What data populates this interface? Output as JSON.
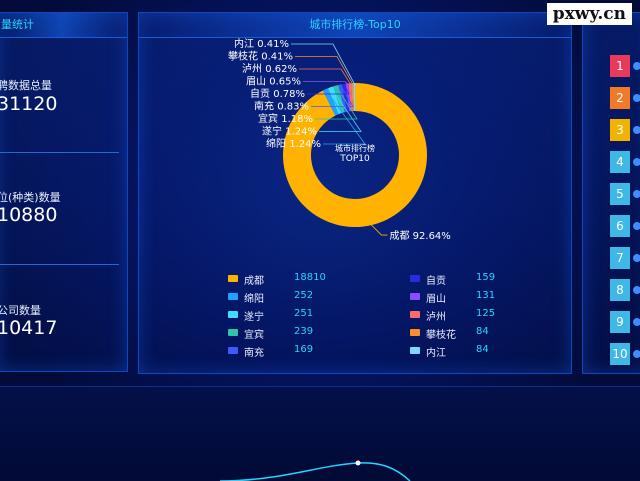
{
  "watermark": "pxwy.cn",
  "left_panel": {
    "title": "量统计",
    "stats": [
      {
        "label": "聘数据总量",
        "value": "31120"
      },
      {
        "label": "位(种类)数量",
        "value": "10880"
      },
      {
        "label": "公司数量",
        "value": "10417"
      }
    ]
  },
  "center_panel": {
    "title": "城市排行榜-Top10",
    "donut_center": {
      "line1": "城市排行榜",
      "line2": "TOP10"
    }
  },
  "chart_data": {
    "type": "pie",
    "title": "城市排行榜-Top10",
    "slices": [
      {
        "name": "成都",
        "value": 18810,
        "label": "成都 92.64%",
        "color": "#ffb300"
      },
      {
        "name": "绵阳",
        "value": 252,
        "label": "绵阳 1.24%",
        "color": "#1fa2ff"
      },
      {
        "name": "遂宁",
        "value": 251,
        "label": "遂宁 1.24%",
        "color": "#3fdcff"
      },
      {
        "name": "宜宾",
        "value": 239,
        "label": "宜宾 1.18%",
        "color": "#2ec4a8"
      },
      {
        "name": "南充",
        "value": 169,
        "label": "南充 0.83%",
        "color": "#3b5bff"
      },
      {
        "name": "自贡",
        "value": 159,
        "label": "自贡 0.78%",
        "color": "#2a2ae0"
      },
      {
        "name": "眉山",
        "value": 131,
        "label": "眉山 0.65%",
        "color": "#8b4dff"
      },
      {
        "name": "泸州",
        "value": 125,
        "label": "泸州 0.62%",
        "color": "#ff6b6b"
      },
      {
        "name": "攀枝花",
        "value": 84,
        "label": "攀枝花 0.41%",
        "color": "#ff8c2a"
      },
      {
        "name": "内江",
        "value": 84,
        "label": "内江 0.41%",
        "color": "#7fd7ff"
      }
    ]
  },
  "right_panel": {
    "ranks": [
      {
        "num": "1",
        "color": "#e83a5a"
      },
      {
        "num": "2",
        "color": "#f07a2a"
      },
      {
        "num": "3",
        "color": "#f0b400"
      },
      {
        "num": "4",
        "color": "#3fb8e8"
      },
      {
        "num": "5",
        "color": "#3fb8e8"
      },
      {
        "num": "6",
        "color": "#3fb8e8"
      },
      {
        "num": "7",
        "color": "#3fb8e8"
      },
      {
        "num": "8",
        "color": "#3fb8e8"
      },
      {
        "num": "9",
        "color": "#3fb8e8"
      },
      {
        "num": "10",
        "color": "#3fb8e8"
      }
    ]
  }
}
